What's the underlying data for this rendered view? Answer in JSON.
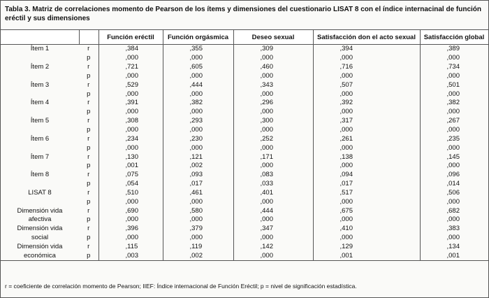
{
  "title": "Tabla 3.   Matriz de correlaciones momento de Pearson de los ítems y dimensiones del cuestionario LISAT 8 con el índice internacinal de función eréctil y sus dimensiones",
  "table": {
    "columns": [
      "Función eréctil",
      "Función orgásmica",
      "Deseo sexual",
      "Satisfacción don el acto sexual",
      "Satisfacción global"
    ],
    "groups": [
      {
        "label": [
          "Ítem 1"
        ],
        "rows": [
          {
            "stat": "r",
            "values": [
              ",384",
              ",355",
              ",309",
              ",394",
              ",389"
            ]
          },
          {
            "stat": "p",
            "values": [
              ",000",
              ",000",
              ",000",
              ",000",
              ",000"
            ]
          }
        ]
      },
      {
        "label": [
          "Ítem 2"
        ],
        "rows": [
          {
            "stat": "r",
            "values": [
              ",721",
              ",605",
              ",460",
              ",716",
              ",734"
            ]
          },
          {
            "stat": "p",
            "values": [
              ",000",
              ",000",
              ",000",
              ",000",
              ",000"
            ]
          }
        ]
      },
      {
        "label": [
          "Ítem 3"
        ],
        "rows": [
          {
            "stat": "r",
            "values": [
              ",529",
              ",444",
              ",343",
              ",507",
              ",501"
            ]
          },
          {
            "stat": "p",
            "values": [
              ",000",
              ",000",
              ",000",
              ",000",
              ",000"
            ]
          }
        ]
      },
      {
        "label": [
          "Ítem 4"
        ],
        "rows": [
          {
            "stat": "r",
            "values": [
              ",391",
              ",382",
              ",296",
              ",392",
              ",382"
            ]
          },
          {
            "stat": "p",
            "values": [
              ",000",
              ",000",
              ",000",
              ",000",
              ",000"
            ]
          }
        ]
      },
      {
        "label": [
          "Ítem 5"
        ],
        "rows": [
          {
            "stat": "r",
            "values": [
              ",308",
              ",293",
              ",300",
              ",317",
              ",267"
            ]
          },
          {
            "stat": "p",
            "values": [
              ",000",
              ",000",
              ",000",
              ",000",
              ",000"
            ]
          }
        ]
      },
      {
        "label": [
          "Ítem 6"
        ],
        "rows": [
          {
            "stat": "r",
            "values": [
              ",234",
              ",230",
              ",252",
              ",261",
              ",235"
            ]
          },
          {
            "stat": "p",
            "values": [
              ",000",
              ",000",
              ",000",
              ",000",
              ",000"
            ]
          }
        ]
      },
      {
        "label": [
          "Ítem 7"
        ],
        "rows": [
          {
            "stat": "r",
            "values": [
              ",130",
              ",121",
              ",171",
              ",138",
              ",145"
            ]
          },
          {
            "stat": "p",
            "values": [
              ",001",
              ",002",
              ",000",
              ",000",
              ",000"
            ]
          }
        ]
      },
      {
        "label": [
          "Ítem 8"
        ],
        "rows": [
          {
            "stat": "r",
            "values": [
              ",075",
              ",093",
              ",083",
              ",094",
              ",096"
            ]
          },
          {
            "stat": "p",
            "values": [
              ",054",
              ",017",
              ",033",
              ",017",
              ",014"
            ]
          }
        ]
      },
      {
        "label": [
          "LISAT 8"
        ],
        "rows": [
          {
            "stat": "r",
            "values": [
              ",510",
              ",461",
              ",401",
              ",517",
              ",506"
            ]
          },
          {
            "stat": "p",
            "values": [
              ",000",
              ",000",
              ",000",
              ",000",
              ",000"
            ]
          }
        ]
      },
      {
        "label": [
          "Dimensión vida",
          "afectiva"
        ],
        "rows": [
          {
            "stat": "r",
            "values": [
              ",690",
              ",580",
              ",444",
              ",675",
              ",682"
            ]
          },
          {
            "stat": "p",
            "values": [
              ",000",
              ",000",
              ",000",
              ",000",
              ",000"
            ]
          }
        ]
      },
      {
        "label": [
          "Dimensión vida",
          "social"
        ],
        "rows": [
          {
            "stat": "r",
            "values": [
              ",396",
              ",379",
              ",347",
              ",410",
              ",383"
            ]
          },
          {
            "stat": "p",
            "values": [
              ",000",
              ",000",
              ",000",
              ",000",
              ",000"
            ]
          }
        ]
      },
      {
        "label": [
          "Dimensión vida",
          "económica"
        ],
        "rows": [
          {
            "stat": "r",
            "values": [
              ",115",
              ",119",
              ",142",
              ",129",
              ",134"
            ]
          },
          {
            "stat": "p",
            "values": [
              ",003",
              ",002",
              ",000",
              ",001",
              ",001"
            ]
          }
        ]
      }
    ]
  },
  "footnote": "r = coeficiente de correlación momento de Pearson; IIEF: Índice internacional de Función Eréctil; p = nivel de significación estadística."
}
